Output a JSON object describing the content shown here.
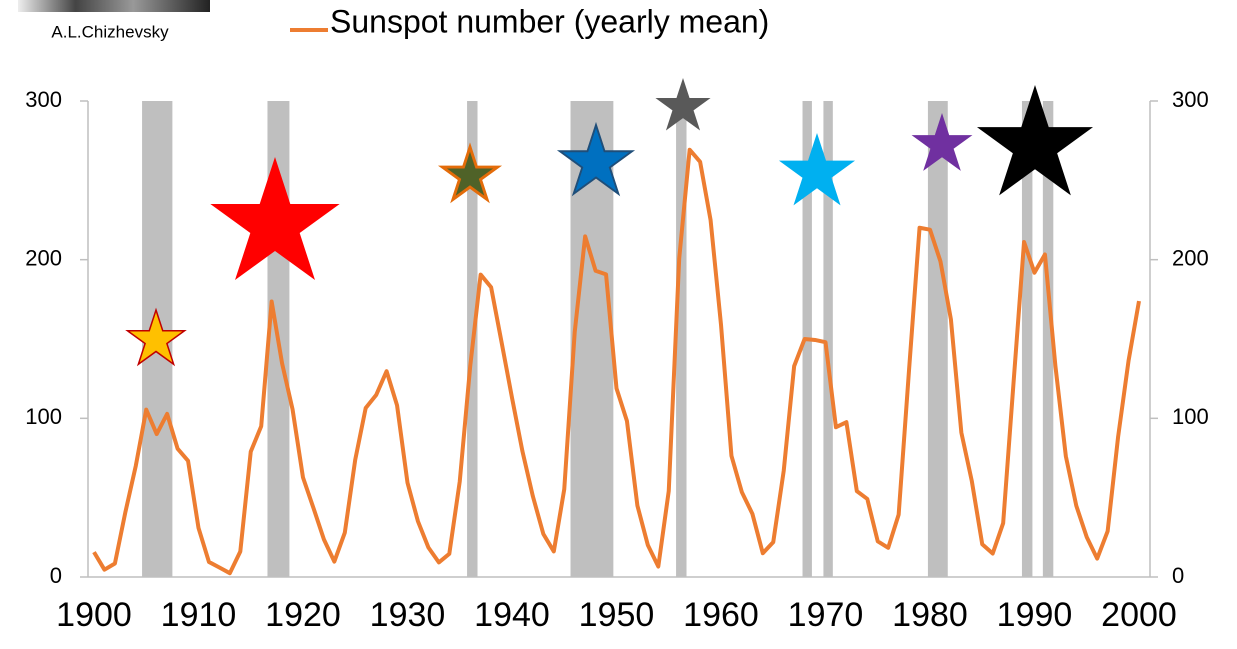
{
  "caption": "A.L.Chizhevsky",
  "chart_data": {
    "type": "line",
    "x": [
      1900,
      1901,
      1902,
      1903,
      1904,
      1905,
      1906,
      1907,
      1908,
      1909,
      1910,
      1911,
      1912,
      1913,
      1914,
      1915,
      1916,
      1917,
      1918,
      1919,
      1920,
      1921,
      1922,
      1923,
      1924,
      1925,
      1926,
      1927,
      1928,
      1929,
      1930,
      1931,
      1932,
      1933,
      1934,
      1935,
      1936,
      1937,
      1938,
      1939,
      1940,
      1941,
      1942,
      1943,
      1944,
      1945,
      1946,
      1947,
      1948,
      1949,
      1950,
      1951,
      1952,
      1953,
      1954,
      1955,
      1956,
      1957,
      1958,
      1959,
      1960,
      1961,
      1962,
      1963,
      1964,
      1965,
      1966,
      1967,
      1968,
      1969,
      1970,
      1971,
      1972,
      1973,
      1974,
      1975,
      1976,
      1977,
      1978,
      1979,
      1980,
      1981,
      1982,
      1983,
      1984,
      1985,
      1986,
      1987,
      1988,
      1989,
      1990,
      1991,
      1992,
      1993,
      1994,
      1995,
      1996,
      1997,
      1998,
      1999,
      2000
    ],
    "series": [
      {
        "name": "Sunspot number (yearly mean)",
        "color": "#ed7d31",
        "values": [
          15.7,
          4.6,
          8.5,
          40.8,
          70.1,
          105.5,
          90.1,
          102.8,
          80.9,
          73.2,
          30.9,
          9.5,
          6.0,
          2.4,
          16.1,
          79.0,
          95.0,
          173.6,
          134.6,
          105.7,
          62.7,
          43.5,
          23.7,
          9.7,
          27.9,
          74.0,
          106.5,
          114.7,
          129.7,
          108.2,
          59.4,
          35.1,
          18.6,
          9.2,
          14.6,
          60.2,
          132.8,
          190.6,
          182.6,
          148.0,
          113.0,
          79.2,
          50.8,
          27.1,
          16.1,
          55.3,
          154.3,
          214.7,
          193.0,
          190.7,
          118.9,
          98.3,
          45.0,
          20.1,
          6.6,
          54.2,
          200.7,
          269.3,
          261.7,
          225.1,
          159.0,
          76.4,
          53.4,
          39.9,
          15.0,
          22.0,
          66.8,
          132.9,
          150.0,
          149.4,
          148.0,
          94.4,
          97.6,
          54.1,
          49.2,
          22.5,
          18.4,
          39.3,
          131.0,
          220.1,
          218.9,
          198.9,
          162.4,
          91.0,
          60.5,
          20.6,
          14.8,
          33.9,
          123.0,
          211.1,
          191.8,
          203.3,
          133.0,
          76.1,
          44.9,
          25.1,
          11.6,
          28.9,
          88.3,
          136.3,
          173.9
        ]
      }
    ],
    "shaded_periods": [
      [
        1904.6,
        1907.5
      ],
      [
        1916.6,
        1918.7
      ],
      [
        1935.7,
        1936.7
      ],
      [
        1945.6,
        1949.7
      ],
      [
        1955.7,
        1956.7
      ],
      [
        1967.8,
        1968.7
      ],
      [
        1969.8,
        1970.7
      ],
      [
        1979.8,
        1981.7
      ],
      [
        1988.8,
        1989.8
      ],
      [
        1990.8,
        1991.8
      ]
    ],
    "shade_color": "#bfbfbf",
    "xlim": [
      1900,
      2000
    ],
    "xticks": [
      1900,
      1910,
      1920,
      1930,
      1940,
      1950,
      1960,
      1970,
      1980,
      1990,
      2000
    ],
    "ylim": [
      0,
      300
    ],
    "yticks": [
      0,
      100,
      200,
      300
    ],
    "y2lim": [
      0,
      300
    ],
    "y2ticks": [
      0,
      100,
      200,
      300
    ]
  }
}
